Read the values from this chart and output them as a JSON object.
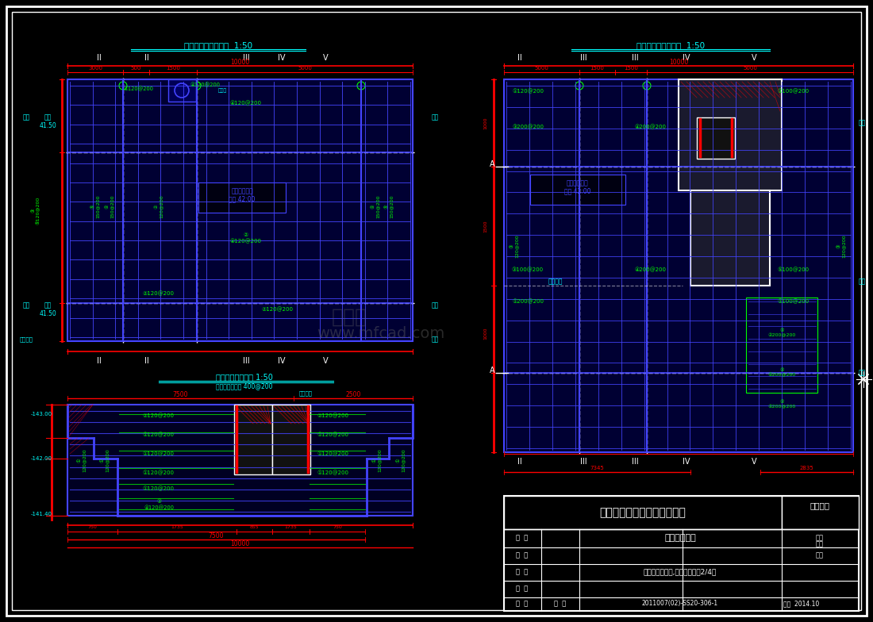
{
  "bg_color": "#000000",
  "border_color": "#ffffff",
  "title_block": {
    "company": "ｘｘ水利水电勘测设计研究院",
    "project": "ｘｘ防洪工程",
    "drawing_title": "某水闸闸室底板,闸墩结构图（2/4）",
    "drawing_no": "2011007(02)-SS20-306-1",
    "date": "2014.10",
    "design_cert": "设计证号"
  },
  "dim_color": "#ff0000",
  "text_color": "#00ffff",
  "rebar_color": "#00ff00",
  "axis_color": "#ffffff",
  "blue": "#4444ff",
  "darkblue": "#00008b"
}
